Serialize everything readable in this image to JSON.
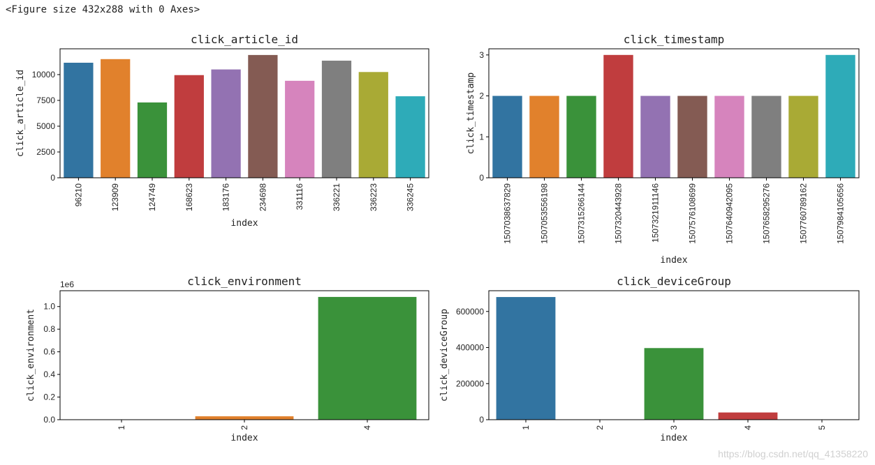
{
  "figure_caption": "<Figure size 432x288 with 0 Axes>",
  "watermark": "https://blog.csdn.net/qq_41358220",
  "chart_data": [
    {
      "type": "bar",
      "title": "click_article_id",
      "xlabel": "index",
      "ylabel": "click_article_id",
      "categories": [
        "96210",
        "123909",
        "124749",
        "168623",
        "183176",
        "234698",
        "331116",
        "336221",
        "336223",
        "336245"
      ],
      "values": [
        11150,
        11500,
        7300,
        9950,
        10500,
        11900,
        9400,
        11350,
        10250,
        7900
      ],
      "ylim": [
        0,
        12500
      ],
      "yticks": [
        0,
        2500,
        5000,
        7500,
        10000
      ],
      "ytick_labels": [
        "0",
        "2500",
        "5000",
        "7500",
        "10000"
      ],
      "colors": [
        "#3274a1",
        "#e1812c",
        "#3a923a",
        "#c03d3e",
        "#9372b2",
        "#845b53",
        "#d684bd",
        "#7f7f7f",
        "#a9aa35",
        "#2eabb8"
      ],
      "xtick_rotation": 90
    },
    {
      "type": "bar",
      "title": "click_timestamp",
      "xlabel": "index",
      "ylabel": "click_timestamp",
      "categories": [
        "1507038637829",
        "1507053556198",
        "1507315266144",
        "1507320443928",
        "1507321911146",
        "1507576108699",
        "1507640942095",
        "1507658295276",
        "1507760789162",
        "1507984105656"
      ],
      "values": [
        2,
        2,
        2,
        3,
        2,
        2,
        2,
        2,
        2,
        3
      ],
      "ylim": [
        0,
        3.15
      ],
      "yticks": [
        0,
        1,
        2,
        3
      ],
      "ytick_labels": [
        "0",
        "1",
        "2",
        "3"
      ],
      "colors": [
        "#3274a1",
        "#e1812c",
        "#3a923a",
        "#c03d3e",
        "#9372b2",
        "#845b53",
        "#d684bd",
        "#7f7f7f",
        "#a9aa35",
        "#2eabb8"
      ],
      "xtick_rotation": 90
    },
    {
      "type": "bar",
      "title": "click_environment",
      "xlabel": "index",
      "ylabel": "click_environment",
      "categories": [
        "1",
        "2",
        "4"
      ],
      "values": [
        0,
        30000,
        1085000
      ],
      "ylim": [
        0,
        1140000
      ],
      "yticks": [
        0,
        200000,
        400000,
        600000,
        800000,
        1000000
      ],
      "ytick_labels": [
        "0.0",
        "0.2",
        "0.4",
        "0.6",
        "0.8",
        "1.0"
      ],
      "offset_text": "1e6",
      "colors": [
        "#3274a1",
        "#e1812c",
        "#3a923a"
      ],
      "xtick_rotation": 90
    },
    {
      "type": "bar",
      "title": "click_deviceGroup",
      "xlabel": "index",
      "ylabel": "click_deviceGroup",
      "categories": [
        "1",
        "2",
        "3",
        "4",
        "5"
      ],
      "values": [
        680000,
        500,
        397000,
        40000,
        300
      ],
      "ylim": [
        0,
        715000
      ],
      "yticks": [
        0,
        200000,
        400000,
        600000
      ],
      "ytick_labels": [
        "0",
        "200000",
        "400000",
        "600000"
      ],
      "colors": [
        "#3274a1",
        "#e1812c",
        "#3a923a",
        "#c03d3e",
        "#9372b2"
      ],
      "xtick_rotation": 90
    }
  ]
}
